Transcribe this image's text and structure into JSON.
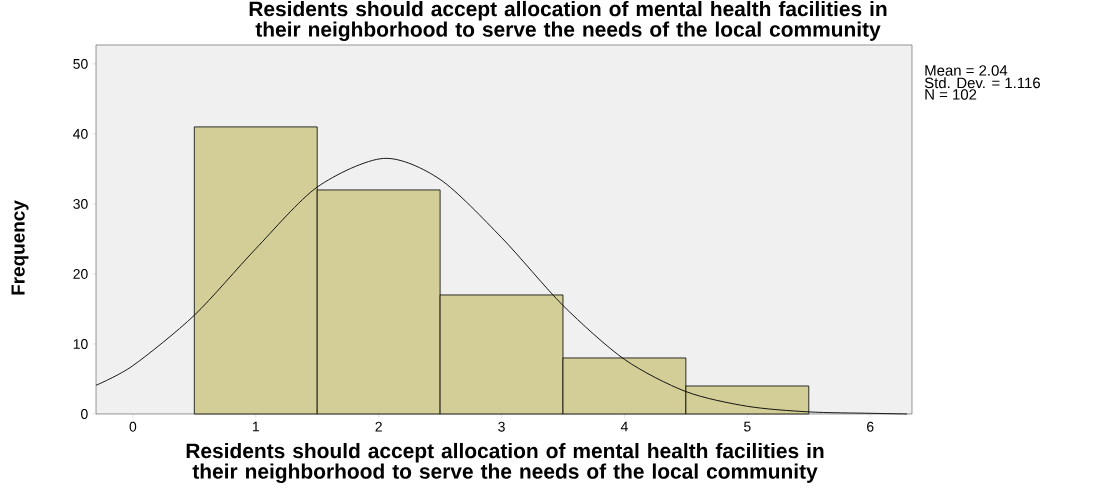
{
  "chart_data": {
    "type": "histogram",
    "title": "Residents should accept allocation of mental health facilities in their neighborhood to serve the needs of the local community",
    "xlabel": "Residents should accept allocation of mental health facilities in their neighborhood to serve the needs of the local community",
    "ylabel": "Frequency",
    "bins": [
      0.5,
      1.5,
      2.5,
      3.5,
      4.5,
      5.5
    ],
    "values": [
      41,
      32,
      17,
      8,
      4
    ],
    "color": "#d3ce97",
    "series": [
      {
        "type": "line",
        "color": "#000000",
        "x": [
          -0.3,
          0,
          0.5,
          1.0,
          1.5,
          2.04,
          2.5,
          3.0,
          3.5,
          4.0,
          4.5,
          5.0,
          5.5,
          6.0,
          6.3
        ],
        "values": [
          4.1,
          6.9,
          14.1,
          23.6,
          32.4,
          36.5,
          33.5,
          25.2,
          15.5,
          7.8,
          3.2,
          1.1,
          0.3,
          0.1,
          0.0
        ]
      }
    ],
    "xlim": [
      -0.3,
      6.34
    ],
    "ylim": [
      0,
      52.7
    ],
    "xticks": [
      0,
      1,
      2,
      3,
      4,
      5,
      6
    ],
    "yticks": [
      0,
      10,
      20,
      30,
      40,
      50
    ],
    "annotations": [
      "Mean = 2.04",
      "Std. Dev. = 1.116",
      "N = 102"
    ]
  }
}
